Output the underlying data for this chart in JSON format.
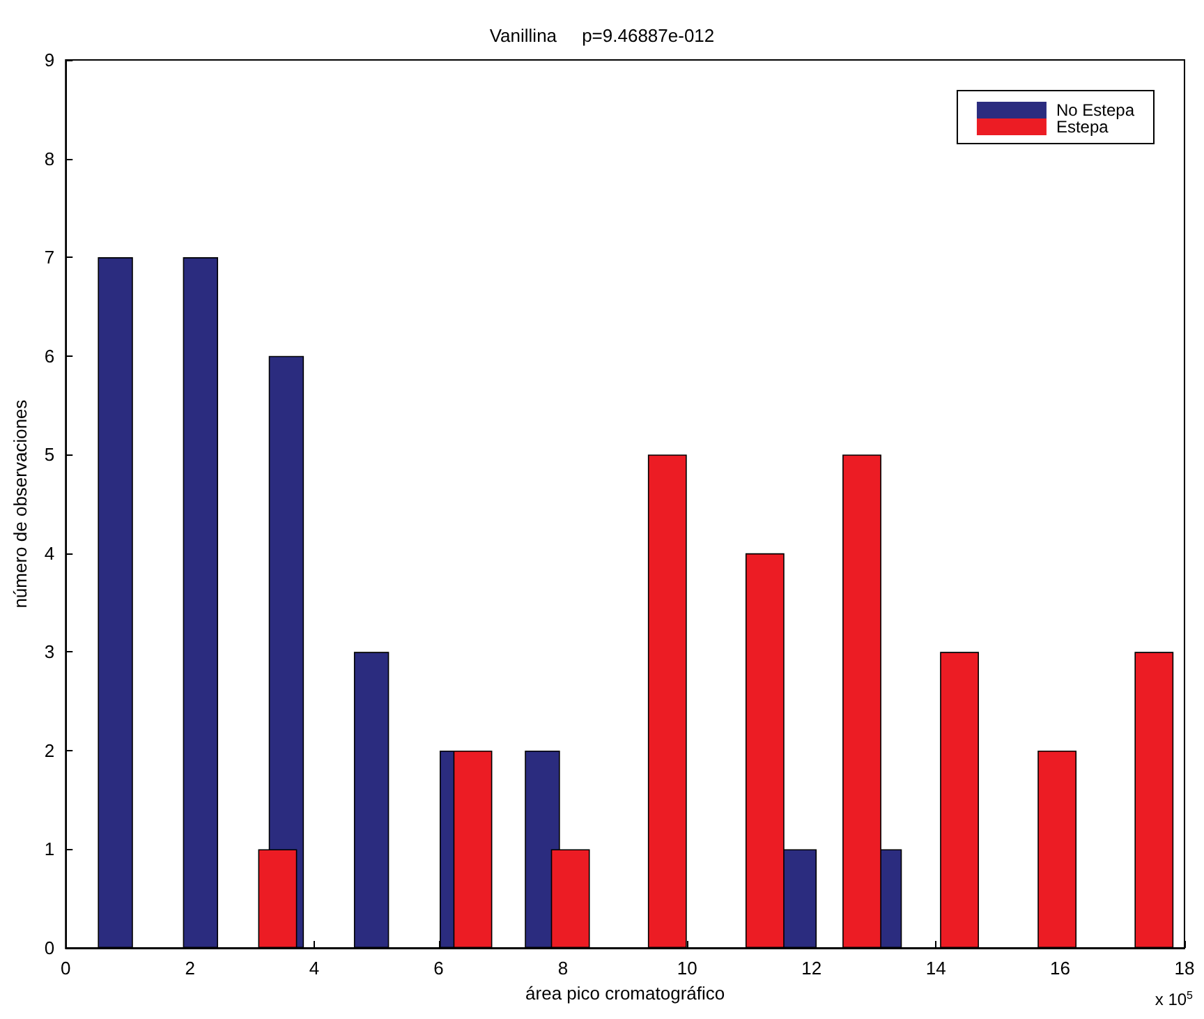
{
  "chart_data": {
    "type": "bar",
    "title": "Vanillina     p=9.46887e-012",
    "xlabel": "área pico cromatográfico",
    "ylabel": "número de observaciones",
    "annotations": [
      "x 10$^{5}$"
    ],
    "series": [
      {
        "name": "No Estepa",
        "color": "#2b2c7f",
        "x": [
          0.83,
          2.2,
          3.58,
          4.95,
          6.33,
          7.7,
          9.08,
          10.45,
          11.83,
          13.2
        ],
        "values": [
          7,
          7,
          6,
          3,
          2,
          2,
          0,
          0,
          1,
          1
        ]
      },
      {
        "name": "Estepa",
        "color": "#ec1c24",
        "x": [
          3.41,
          4.98,
          6.55,
          8.12,
          9.68,
          11.25,
          12.81,
          14.38,
          15.95,
          17.51
        ],
        "values": [
          1,
          0,
          2,
          1,
          5,
          4,
          5,
          3,
          2,
          3
        ]
      }
    ],
    "xlim": [
      0,
      18
    ],
    "xticks": [
      0,
      2,
      4,
      6,
      8,
      10,
      12,
      14,
      16,
      18
    ],
    "ylim": [
      0,
      9
    ],
    "yticks": [
      0,
      1,
      2,
      3,
      4,
      5,
      6,
      7,
      8,
      9
    ],
    "grid": false,
    "legend": "top right"
  }
}
